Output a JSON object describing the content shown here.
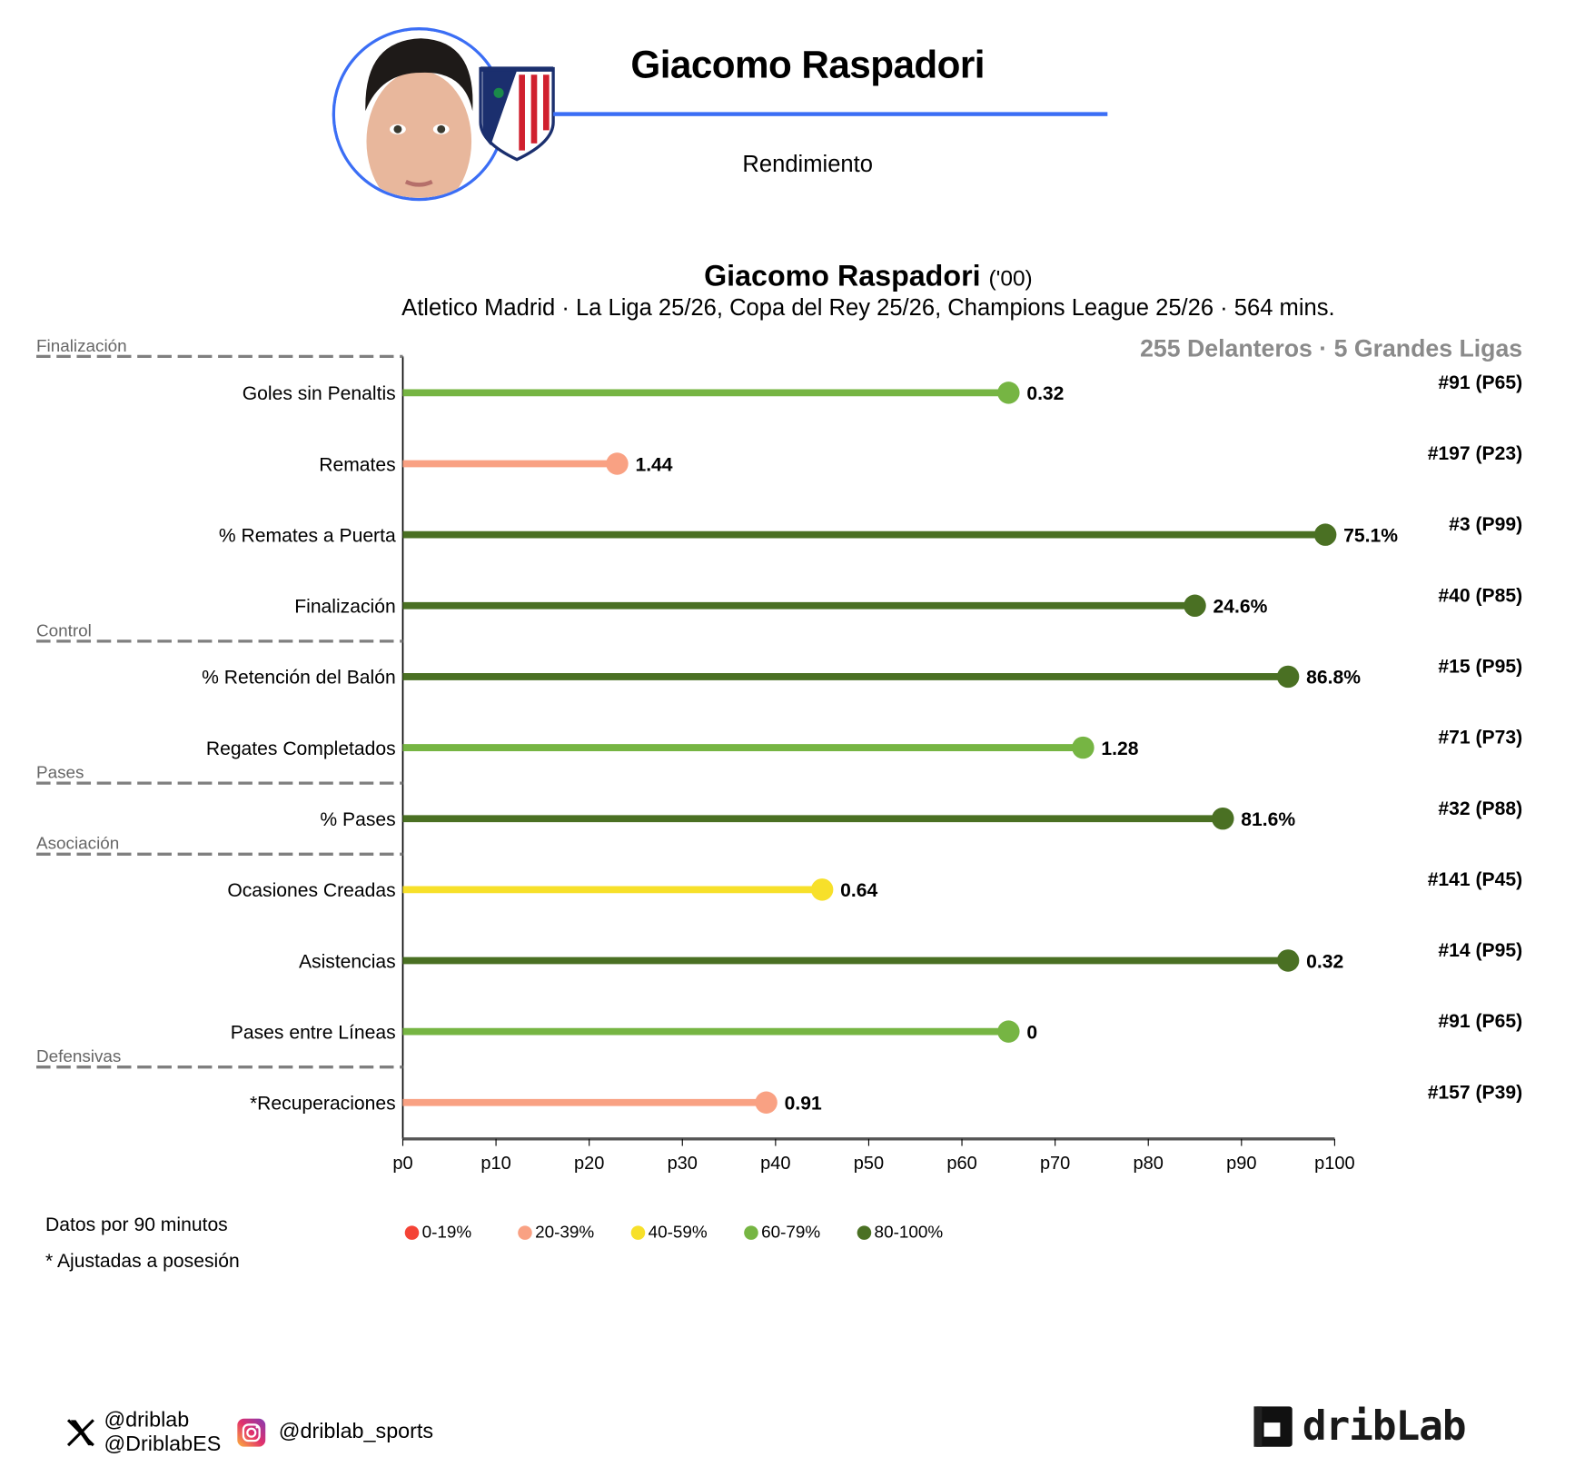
{
  "header": {
    "player_name": "Giacomo Raspadori",
    "subtitle": "Rendimiento",
    "accent_color": "#3b6ef5"
  },
  "chart_data": {
    "type": "lollipop",
    "title": "Giacomo Raspadori",
    "title_suffix": "('00)",
    "subtitle": "Atletico Madrid · La Liga 25/26, Copa del Rey 25/26, Champions League 25/26 · 564 mins.",
    "population": "255 Delanteros · 5 Grandes Ligas",
    "xlim": [
      0,
      100
    ],
    "x_ticks": [
      "p0",
      "p10",
      "p20",
      "p30",
      "p40",
      "p50",
      "p60",
      "p70",
      "p80",
      "p90",
      "p100"
    ],
    "sections": [
      {
        "label": "Finalización",
        "before_index": 0
      },
      {
        "label": "Control",
        "before_index": 4
      },
      {
        "label": "Pases",
        "before_index": 6
      },
      {
        "label": "Asociación",
        "before_index": 7
      },
      {
        "label": "Defensivas",
        "before_index": 10
      }
    ],
    "metrics": [
      {
        "label": "Goles sin Penaltis",
        "percentile": 65,
        "value": "0.32",
        "rank": "#91 (P65)"
      },
      {
        "label": "Remates",
        "percentile": 23,
        "value": "1.44",
        "rank": "#197 (P23)"
      },
      {
        "label": "% Remates a Puerta",
        "percentile": 99,
        "value": "75.1%",
        "rank": "#3 (P99)"
      },
      {
        "label": "Finalización",
        "percentile": 85,
        "value": "24.6%",
        "rank": "#40 (P85)"
      },
      {
        "label": "% Retención del Balón",
        "percentile": 95,
        "value": "86.8%",
        "rank": "#15 (P95)"
      },
      {
        "label": "Regates Completados",
        "percentile": 73,
        "value": "1.28",
        "rank": "#71 (P73)"
      },
      {
        "label": "% Pases",
        "percentile": 88,
        "value": "81.6%",
        "rank": "#32 (P88)"
      },
      {
        "label": "Ocasiones Creadas",
        "percentile": 45,
        "value": "0.64",
        "rank": "#141 (P45)"
      },
      {
        "label": "Asistencias",
        "percentile": 95,
        "value": "0.32",
        "rank": "#14 (P95)"
      },
      {
        "label": "Pases entre Líneas",
        "percentile": 65,
        "value": "0",
        "rank": "#91 (P65)"
      },
      {
        "label": "*Recuperaciones",
        "percentile": 39,
        "value": "0.91",
        "rank": "#157 (P39)"
      }
    ],
    "legend": [
      {
        "label": "0-19%",
        "color": "#f44336"
      },
      {
        "label": "20-39%",
        "color": "#f9a183"
      },
      {
        "label": "40-59%",
        "color": "#f7e02a"
      },
      {
        "label": "60-79%",
        "color": "#76b543"
      },
      {
        "label": "80-100%",
        "color": "#4a7023"
      }
    ]
  },
  "notes": {
    "per90": "Datos por 90 minutos",
    "adjusted": "* Ajustadas a posesión"
  },
  "footer": {
    "x_handle_1": "@driblab",
    "x_handle_2": "@DriblabES",
    "instagram_handle": "@driblab_sports",
    "logo_text": "dribLab"
  }
}
